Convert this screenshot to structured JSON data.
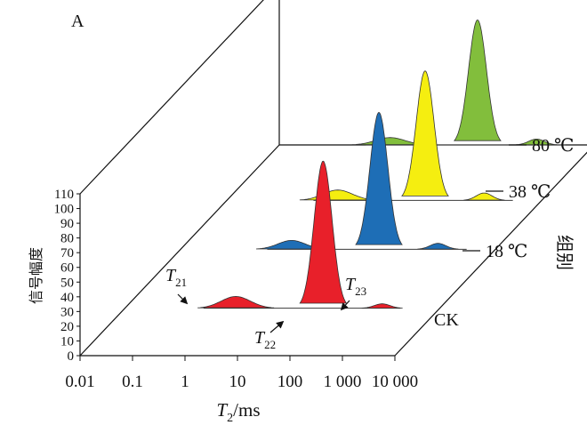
{
  "chart_data": {
    "type": "area",
    "panel_label": "A",
    "xlabel": "T2/ms",
    "xlabel_main": "T",
    "xlabel_sub": "2",
    "xlabel_unit": "/ms",
    "x_scale": "log",
    "xlim": [
      0.01,
      10000
    ],
    "x_tick_labels": [
      "0.01",
      "0.1",
      "1",
      "10",
      "100",
      "1 000",
      "10 000"
    ],
    "x_tick_values": [
      0.01,
      0.1,
      1,
      10,
      100,
      1000,
      10000
    ],
    "ylabel": "信号幅度",
    "ylim": [
      0,
      110
    ],
    "y_tick_values": [
      0,
      10,
      20,
      30,
      40,
      50,
      60,
      70,
      80,
      90,
      100,
      110
    ],
    "z_label": "组别",
    "grid": false,
    "series": [
      {
        "name": "CK",
        "color": "#e8202a",
        "peaks": [
          {
            "center": 1.3,
            "amplitude": 8,
            "width_decades": 0.28
          },
          {
            "center": 60,
            "amplitude": 100,
            "width_decades": 0.17
          },
          {
            "center": 800,
            "amplitude": 3,
            "width_decades": 0.15
          }
        ]
      },
      {
        "name": "18 ℃",
        "color": "#1e6eb6",
        "peaks": [
          {
            "center": 1.3,
            "amplitude": 6,
            "width_decades": 0.26
          },
          {
            "center": 60,
            "amplitude": 93,
            "width_decades": 0.17
          },
          {
            "center": 800,
            "amplitude": 4,
            "width_decades": 0.15
          }
        ]
      },
      {
        "name": "38 ℃",
        "color": "#f5ee10",
        "peaks": [
          {
            "center": 1.3,
            "amplitude": 7,
            "width_decades": 0.28
          },
          {
            "center": 60,
            "amplitude": 88,
            "width_decades": 0.17
          },
          {
            "center": 800,
            "amplitude": 5,
            "width_decades": 0.15
          }
        ]
      },
      {
        "name": "80 ℃",
        "color": "#82be3c",
        "peaks": [
          {
            "center": 1.3,
            "amplitude": 5,
            "width_decades": 0.28
          },
          {
            "center": 60,
            "amplitude": 85,
            "width_decades": 0.17
          },
          {
            "center": 800,
            "amplitude": 4,
            "width_decades": 0.15
          }
        ]
      }
    ],
    "annotations": [
      {
        "text": "T",
        "sub": "21",
        "series": "CK",
        "x": 1.3
      },
      {
        "text": "T",
        "sub": "22",
        "series": "CK",
        "x": 60
      },
      {
        "text": "T",
        "sub": "23",
        "series": "CK",
        "x": 800
      }
    ]
  }
}
